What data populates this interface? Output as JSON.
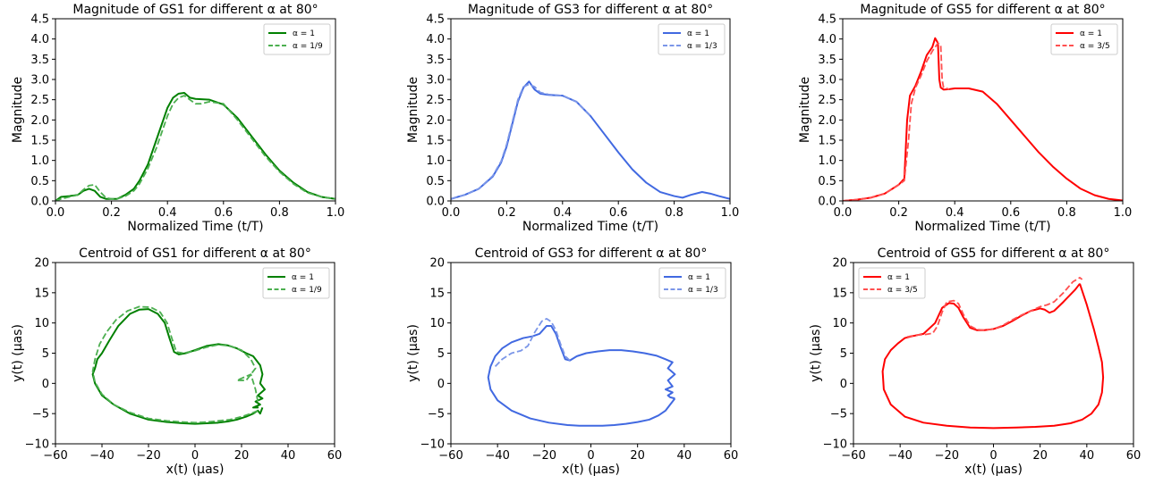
{
  "figure": {
    "background": "#ffffff"
  },
  "chart_data": [
    {
      "id": "mag-gs1",
      "type": "line",
      "title": "Magnitude of GS1 for different α at 80°",
      "xlabel": "Normalized Time (t/T)",
      "ylabel": "Magnitude",
      "xlim": [
        0,
        1
      ],
      "ylim": [
        0,
        4.5
      ],
      "xticks": [
        "0.0",
        "0.2",
        "0.4",
        "0.6",
        "0.8",
        "1.0"
      ],
      "yticks": [
        "0.0",
        "0.5",
        "1.0",
        "1.5",
        "2.0",
        "2.5",
        "3.0",
        "3.5",
        "4.0",
        "4.5"
      ],
      "legend": "top-right",
      "grid": false,
      "series": [
        {
          "name": "α = 1",
          "color": "#008000",
          "dash": "solid",
          "x": [
            0,
            0.02,
            0.05,
            0.08,
            0.1,
            0.12,
            0.14,
            0.16,
            0.18,
            0.2,
            0.22,
            0.25,
            0.28,
            0.3,
            0.33,
            0.36,
            0.38,
            0.4,
            0.42,
            0.44,
            0.46,
            0.48,
            0.5,
            0.55,
            0.6,
            0.65,
            0.7,
            0.75,
            0.8,
            0.85,
            0.9,
            0.95,
            1.0
          ],
          "y": [
            0.0,
            0.1,
            0.12,
            0.15,
            0.25,
            0.3,
            0.25,
            0.1,
            0.05,
            0.05,
            0.05,
            0.15,
            0.3,
            0.5,
            0.9,
            1.5,
            1.9,
            2.3,
            2.55,
            2.65,
            2.67,
            2.55,
            2.52,
            2.5,
            2.38,
            2.05,
            1.6,
            1.15,
            0.75,
            0.45,
            0.22,
            0.1,
            0.05
          ]
        },
        {
          "name": "α = 1/9",
          "color": "#4caf50",
          "dash": "dashed",
          "x": [
            0,
            0.02,
            0.05,
            0.08,
            0.1,
            0.12,
            0.14,
            0.16,
            0.18,
            0.2,
            0.22,
            0.25,
            0.28,
            0.3,
            0.33,
            0.36,
            0.38,
            0.4,
            0.42,
            0.44,
            0.46,
            0.48,
            0.5,
            0.52,
            0.55,
            0.6,
            0.65,
            0.7,
            0.75,
            0.8,
            0.85,
            0.9,
            0.95,
            1.0
          ],
          "y": [
            0.0,
            0.05,
            0.1,
            0.15,
            0.28,
            0.38,
            0.4,
            0.22,
            0.08,
            0.05,
            0.05,
            0.12,
            0.25,
            0.42,
            0.8,
            1.3,
            1.7,
            2.1,
            2.4,
            2.55,
            2.6,
            2.5,
            2.4,
            2.4,
            2.45,
            2.4,
            2.0,
            1.55,
            1.1,
            0.72,
            0.42,
            0.2,
            0.1,
            0.05
          ]
        }
      ]
    },
    {
      "id": "mag-gs3",
      "type": "line",
      "title": "Magnitude of GS3 for different α at 80°",
      "xlabel": "Normalized Time (t/T)",
      "ylabel": "Magnitude",
      "xlim": [
        0,
        1
      ],
      "ylim": [
        0,
        4.5
      ],
      "xticks": [
        "0.0",
        "0.2",
        "0.4",
        "0.6",
        "0.8",
        "1.0"
      ],
      "yticks": [
        "0.0",
        "0.5",
        "1.0",
        "1.5",
        "2.0",
        "2.5",
        "3.0",
        "3.5",
        "4.0",
        "4.5"
      ],
      "legend": "top-right",
      "grid": false,
      "series": [
        {
          "name": "α = 1",
          "color": "#4169e1",
          "dash": "solid",
          "x": [
            0,
            0.05,
            0.1,
            0.15,
            0.18,
            0.2,
            0.22,
            0.24,
            0.26,
            0.28,
            0.3,
            0.32,
            0.35,
            0.4,
            0.45,
            0.5,
            0.55,
            0.6,
            0.65,
            0.7,
            0.75,
            0.8,
            0.83,
            0.86,
            0.9,
            0.93,
            0.96,
            1.0
          ],
          "y": [
            0.05,
            0.15,
            0.3,
            0.6,
            0.95,
            1.35,
            1.9,
            2.45,
            2.8,
            2.95,
            2.75,
            2.65,
            2.62,
            2.6,
            2.45,
            2.1,
            1.65,
            1.2,
            0.78,
            0.45,
            0.22,
            0.12,
            0.08,
            0.15,
            0.22,
            0.18,
            0.12,
            0.05
          ]
        },
        {
          "name": "α = 1/3",
          "color": "#7b96e8",
          "dash": "dashed",
          "x": [
            0,
            0.05,
            0.1,
            0.15,
            0.18,
            0.2,
            0.22,
            0.24,
            0.26,
            0.28,
            0.3,
            0.32,
            0.35,
            0.4,
            0.45,
            0.5
          ],
          "y": [
            0.05,
            0.15,
            0.3,
            0.62,
            0.98,
            1.4,
            1.95,
            2.5,
            2.82,
            2.88,
            2.82,
            2.68,
            2.63,
            2.6,
            2.45,
            2.1
          ]
        }
      ]
    },
    {
      "id": "mag-gs5",
      "type": "line",
      "title": "Magnitude of GS5 for different α at 80°",
      "xlabel": "Normalized Time (t/T)",
      "ylabel": "Magnitude",
      "xlim": [
        0,
        1
      ],
      "ylim": [
        0,
        4.5
      ],
      "xticks": [
        "0.0",
        "0.2",
        "0.4",
        "0.6",
        "0.8",
        "1.0"
      ],
      "yticks": [
        "0.0",
        "0.5",
        "1.0",
        "1.5",
        "2.0",
        "2.5",
        "3.0",
        "3.5",
        "4.0",
        "4.5"
      ],
      "legend": "top-right",
      "grid": false,
      "series": [
        {
          "name": "α = 1",
          "color": "#ff0000",
          "dash": "solid",
          "x": [
            0,
            0.05,
            0.1,
            0.15,
            0.2,
            0.22,
            0.23,
            0.24,
            0.26,
            0.28,
            0.3,
            0.32,
            0.33,
            0.34,
            0.345,
            0.35,
            0.36,
            0.38,
            0.4,
            0.45,
            0.5,
            0.55,
            0.6,
            0.65,
            0.7,
            0.75,
            0.8,
            0.85,
            0.9,
            0.95,
            1.0
          ],
          "y": [
            0.0,
            0.03,
            0.08,
            0.18,
            0.4,
            0.55,
            2.0,
            2.6,
            2.85,
            3.2,
            3.6,
            3.8,
            4.02,
            3.9,
            3.0,
            2.8,
            2.75,
            2.76,
            2.78,
            2.78,
            2.7,
            2.4,
            2.0,
            1.6,
            1.2,
            0.85,
            0.55,
            0.3,
            0.14,
            0.05,
            0.01
          ]
        },
        {
          "name": "α = 3/5",
          "color": "#ff5050",
          "dash": "dashed",
          "x": [
            0,
            0.05,
            0.1,
            0.15,
            0.2,
            0.22,
            0.235,
            0.245,
            0.26,
            0.28,
            0.3,
            0.32,
            0.34,
            0.35,
            0.355,
            0.36,
            0.38
          ],
          "y": [
            0.0,
            0.03,
            0.08,
            0.18,
            0.4,
            0.5,
            1.5,
            2.4,
            2.8,
            3.1,
            3.45,
            3.7,
            3.9,
            3.85,
            3.0,
            2.8,
            2.76
          ]
        }
      ]
    },
    {
      "id": "cen-gs1",
      "type": "line",
      "title": "Centroid of GS1 for different α at 80°",
      "xlabel": "x(t) (μas)",
      "ylabel": "y(t) (μas)",
      "xlim": [
        -60,
        60
      ],
      "ylim": [
        -10,
        20
      ],
      "xticks": [
        "−60",
        "−40",
        "−20",
        "0",
        "20",
        "40",
        "60"
      ],
      "yticks": [
        "−10",
        "−5",
        "0",
        "5",
        "10",
        "15",
        "20"
      ],
      "legend": "top-right",
      "grid": false,
      "series": [
        {
          "name": "α = 1",
          "color": "#008000",
          "dash": "solid",
          "x": [
            29,
            28,
            27,
            25,
            22,
            18,
            14,
            10,
            5,
            0,
            -5,
            -12,
            -20,
            -28,
            -35,
            -40,
            -43,
            -44,
            -43,
            -42,
            -40,
            -37,
            -33,
            -28,
            -24,
            -20,
            -16,
            -13,
            -11,
            -9,
            -7,
            -4,
            0,
            5,
            10,
            14,
            18,
            22,
            25,
            28,
            29,
            28,
            30,
            27,
            29,
            26,
            28,
            25,
            27,
            25
          ],
          "y": [
            -4,
            -5,
            -4.5,
            -5,
            -5.5,
            -6,
            -6.3,
            -6.5,
            -6.6,
            -6.7,
            -6.6,
            -6.4,
            -6,
            -5,
            -3.5,
            -2,
            0,
            1.5,
            2.5,
            4,
            5,
            7,
            9.5,
            11.5,
            12.2,
            12.3,
            11.5,
            10,
            7.5,
            5.2,
            4.8,
            5,
            5.5,
            6.2,
            6.5,
            6.3,
            5.8,
            5,
            4.5,
            3,
            1.5,
            0,
            -1,
            -2,
            -2.5,
            -3,
            -3.5,
            -4,
            -4,
            -4
          ]
        },
        {
          "name": "α = 1/9",
          "color": "#4caf50",
          "dash": "dashed",
          "x": [
            27,
            24,
            20,
            15,
            10,
            5,
            0,
            -5,
            -12,
            -20,
            -28,
            -35,
            -40,
            -43,
            -44,
            -43,
            -41,
            -38,
            -34,
            -29,
            -24,
            -19,
            -15,
            -12,
            -10,
            -8,
            -5,
            0,
            5,
            10,
            15,
            20,
            24,
            26,
            22,
            18,
            24,
            26,
            27
          ],
          "y": [
            -4.5,
            -5,
            -5.5,
            -6,
            -6.2,
            -6.4,
            -6.5,
            -6.4,
            -6.2,
            -5.8,
            -4.8,
            -3.5,
            -1.8,
            0.2,
            2,
            4,
            6.5,
            8.5,
            10.5,
            12,
            12.7,
            12.6,
            11.8,
            10,
            7.5,
            5.2,
            5,
            5.4,
            6,
            6.4,
            6.2,
            5.5,
            4,
            2.5,
            0.5,
            0.5,
            1.5,
            -1,
            -3
          ]
        }
      ]
    },
    {
      "id": "cen-gs3",
      "type": "line",
      "title": "Centroid of GS3 for different α at 80°",
      "xlabel": "x(t) (μas)",
      "ylabel": "y(t) (μas)",
      "xlim": [
        -60,
        60
      ],
      "ylim": [
        -10,
        20
      ],
      "xticks": [
        "−60",
        "−40",
        "−20",
        "0",
        "20",
        "40",
        "60"
      ],
      "yticks": [
        "−10",
        "−5",
        "0",
        "5",
        "10",
        "15",
        "20"
      ],
      "legend": "top-right",
      "grid": false,
      "series": [
        {
          "name": "α = 1",
          "color": "#4169e1",
          "dash": "solid",
          "x": [
            36,
            34,
            32,
            29,
            25,
            20,
            15,
            10,
            5,
            0,
            -5,
            -10,
            -18,
            -26,
            -34,
            -40,
            -43,
            -44,
            -43,
            -41,
            -38,
            -34,
            -29,
            -25,
            -22,
            -19,
            -17,
            -15,
            -13,
            -11,
            -9,
            -6,
            -2,
            3,
            8,
            13,
            18,
            23,
            28,
            32,
            35,
            33,
            36,
            33,
            35,
            32,
            35,
            33,
            34,
            36
          ],
          "y": [
            -2.5,
            -3.5,
            -4.5,
            -5.3,
            -6,
            -6.4,
            -6.7,
            -6.9,
            -7,
            -7,
            -7,
            -6.9,
            -6.5,
            -5.8,
            -4.5,
            -2.8,
            -1,
            1,
            2.8,
            4.5,
            5.8,
            6.8,
            7.5,
            7.8,
            8.2,
            9.5,
            9.5,
            8.2,
            6,
            4,
            3.8,
            4.5,
            5,
            5.3,
            5.5,
            5.5,
            5.3,
            5,
            4.6,
            4,
            3.5,
            2.5,
            1.5,
            0.5,
            -0.5,
            -1,
            -1.5,
            -2,
            -2.3,
            -2.5
          ]
        },
        {
          "name": "α = 1/3",
          "color": "#7b96e8",
          "dash": "dashed",
          "x": [
            -41,
            -38,
            -34,
            -30,
            -27,
            -24,
            -21,
            -19,
            -17,
            -15,
            -13,
            -11,
            -9
          ],
          "y": [
            2.8,
            4,
            5,
            5.4,
            6.2,
            8.5,
            10.3,
            10.7,
            10.2,
            8.8,
            6.5,
            4.5,
            3.8
          ]
        }
      ]
    },
    {
      "id": "cen-gs5",
      "type": "line",
      "title": "Centroid of GS5 for different α at 80°",
      "xlabel": "x(t) (μas)",
      "ylabel": "y(t) (μas)",
      "xlim": [
        -60,
        60
      ],
      "ylim": [
        -10,
        20
      ],
      "xticks": [
        "−60",
        "−40",
        "−20",
        "0",
        "20",
        "40",
        "60"
      ],
      "yticks": [
        "−10",
        "−5",
        "0",
        "5",
        "10",
        "15",
        "20"
      ],
      "legend": "top-left",
      "grid": false,
      "series": [
        {
          "name": "α = 1",
          "color": "#ff0000",
          "dash": "solid",
          "x": [
            37,
            40,
            43,
            45,
            46.5,
            47,
            46.5,
            45,
            42,
            38,
            33,
            26,
            18,
            10,
            0,
            -10,
            -20,
            -30,
            -38,
            -44,
            -47,
            -47.5,
            -46.5,
            -44,
            -41,
            -38,
            -35,
            -30,
            -25,
            -22,
            -19,
            -17,
            -15,
            -13,
            -10,
            -7,
            -4,
            0,
            4,
            8,
            12,
            16,
            20,
            22,
            24,
            26,
            30,
            35,
            37
          ],
          "y": [
            16.5,
            13,
            9,
            6,
            3.5,
            1,
            -1.5,
            -3.5,
            -5,
            -6,
            -6.6,
            -7,
            -7.2,
            -7.3,
            -7.4,
            -7.3,
            -7,
            -6.5,
            -5.5,
            -3.5,
            -1,
            2,
            4,
            5.5,
            6.6,
            7.5,
            7.8,
            8.2,
            10,
            12.5,
            13.3,
            13.2,
            12.5,
            11,
            9.2,
            8.8,
            8.8,
            9,
            9.5,
            10.3,
            11.2,
            12,
            12.4,
            12.2,
            11.7,
            12,
            13.5,
            15.5,
            16.5
          ]
        },
        {
          "name": "α = 3/5",
          "color": "#ff5050",
          "dash": "dashed",
          "x": [
            -37,
            -33,
            -29,
            -26,
            -24,
            -22,
            -20,
            -17,
            -15,
            -13,
            -10,
            -7,
            -4,
            0,
            4,
            8,
            12,
            16,
            20,
            23,
            26,
            30,
            34,
            37,
            38
          ],
          "y": [
            7.7,
            8,
            8.1,
            8.3,
            9.5,
            11.8,
            13.5,
            13.7,
            13.2,
            11.5,
            9.5,
            8.9,
            8.8,
            9,
            9.6,
            10.5,
            11.3,
            12,
            12.7,
            13,
            13.5,
            15,
            16.8,
            17.5,
            17.2
          ]
        }
      ]
    }
  ]
}
